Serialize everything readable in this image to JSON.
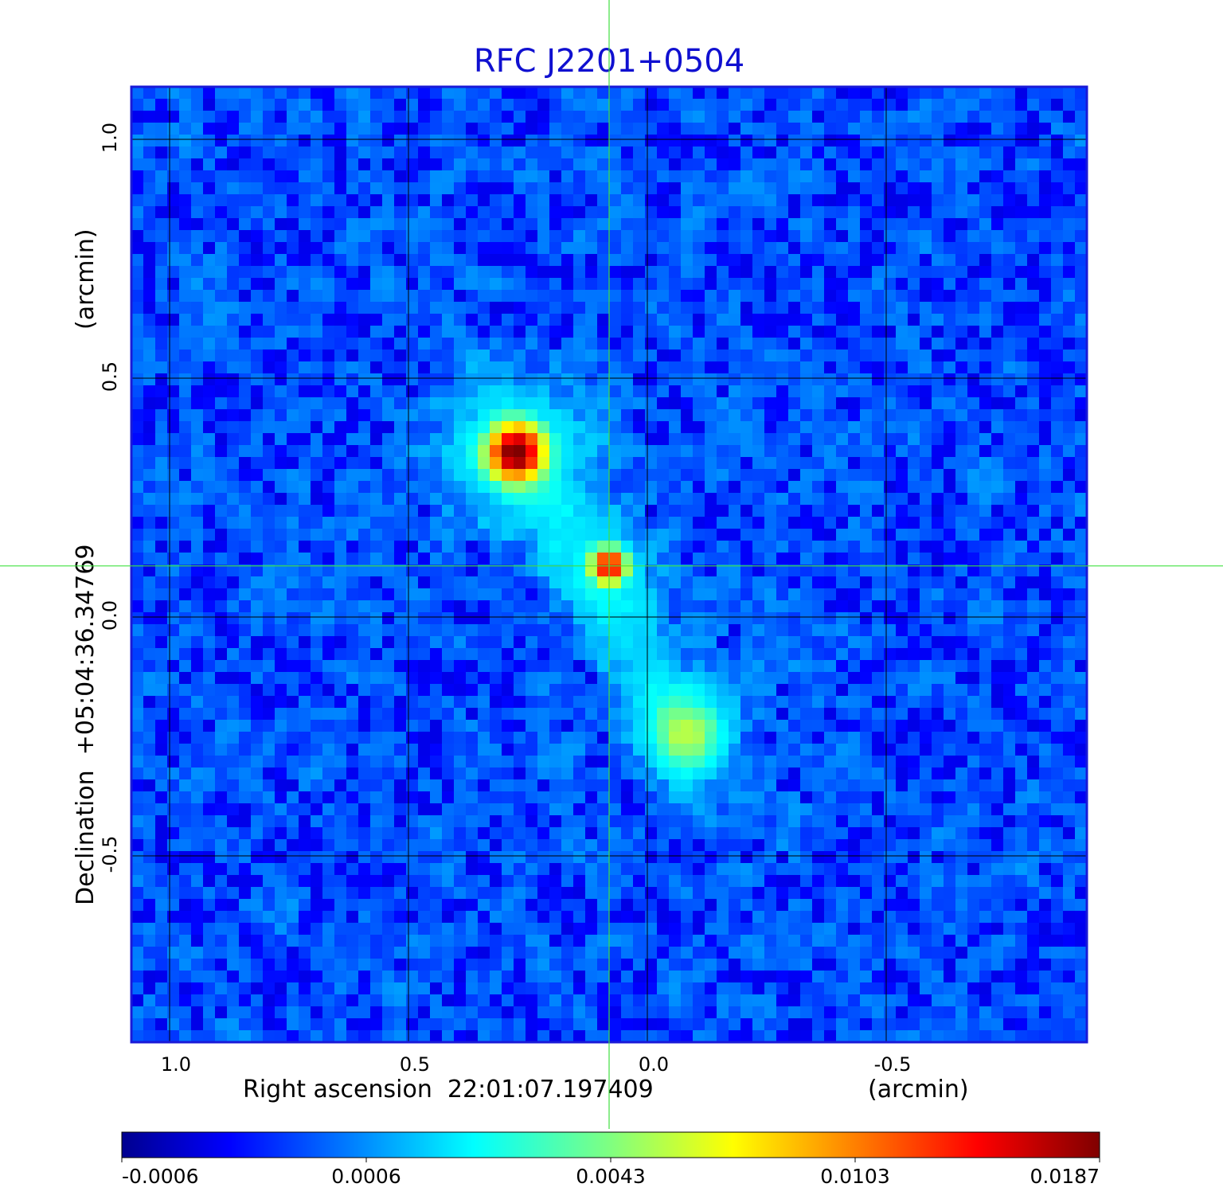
{
  "chart_data": {
    "type": "heatmap",
    "title": "RFC J2201+0504",
    "xlabel": "Right ascension  22:01:07.197409",
    "xunit": "(arcmin)",
    "ylabel": "Declination  +05:04:36.34769",
    "yunit": "(arcmin)",
    "x_ticks": [
      "1.0",
      "0.5",
      "0.0",
      "-0.5"
    ],
    "y_ticks": [
      "1.0",
      "0.5",
      "0.0",
      "-0.5"
    ],
    "x_tick_values": [
      1.0,
      0.5,
      0.0,
      -0.5
    ],
    "y_tick_values": [
      1.0,
      0.5,
      0.0,
      -0.5
    ],
    "xlim": [
      1.08,
      -0.92
    ],
    "ylim": [
      -0.89,
      1.11
    ],
    "grid": true,
    "crosshair": {
      "ra": 0.08,
      "dec": 0.107
    },
    "sources": [
      {
        "ra": 0.275,
        "dec": 0.345,
        "peak": 0.0187,
        "sigma": 0.035
      },
      {
        "ra": 0.08,
        "dec": 0.107,
        "peak": 0.014,
        "sigma": 0.022
      },
      {
        "ra": -0.08,
        "dec": -0.243,
        "peak": 0.0035,
        "sigma": 0.05
      }
    ],
    "colorbar": {
      "tick_labels": [
        "-0.0006",
        "0.0006",
        "0.0043",
        "0.0103",
        "0.0187"
      ],
      "colormap": "jet"
    },
    "colors": {
      "title": "#1010d0",
      "frame": "#1a1ad8",
      "grid": "#000000",
      "crosshair": "#40e040"
    }
  }
}
